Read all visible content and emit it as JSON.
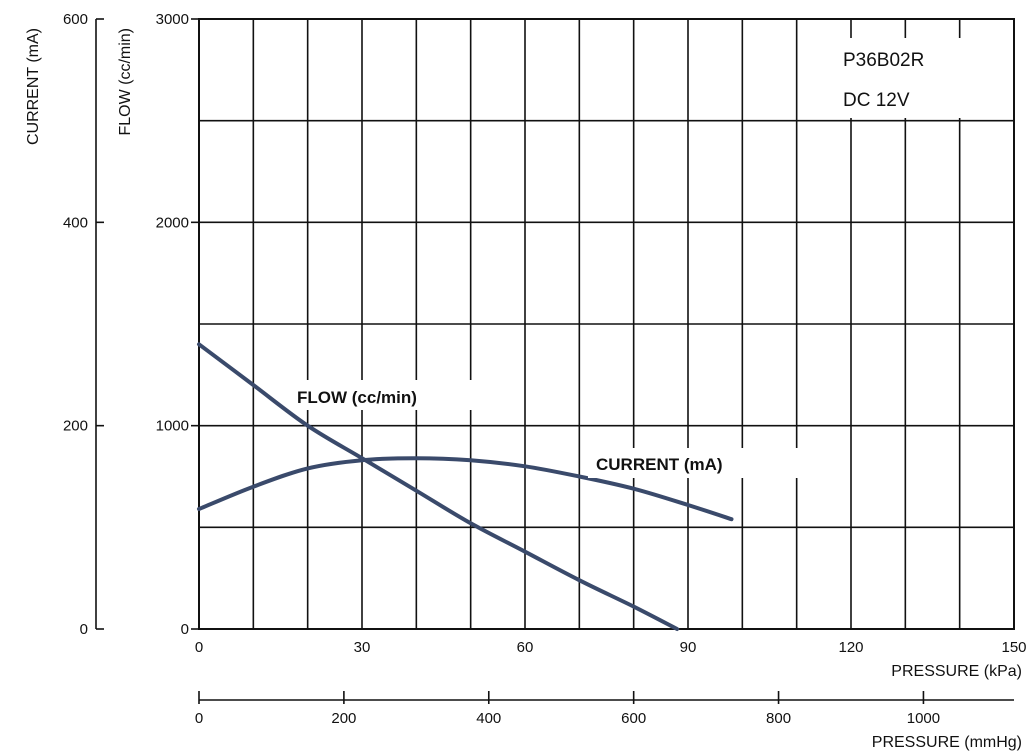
{
  "chart_data": {
    "type": "line",
    "model": "P36B02R",
    "voltage": "DC 12V",
    "x_axis_kpa": {
      "label": "PRESSURE (kPa)",
      "range": [
        0,
        150
      ],
      "ticks": [
        "0",
        "30",
        "60",
        "90",
        "120",
        "150"
      ]
    },
    "x_axis_mmhg": {
      "label": "PRESSURE (mmHg)",
      "range": [
        0,
        1125
      ],
      "ticks": [
        "0",
        "200",
        "400",
        "600",
        "800",
        "1000"
      ]
    },
    "y_axis_flow": {
      "label": "FLOW (cc/min)",
      "range": [
        0,
        3000
      ],
      "ticks": [
        "0",
        "1000",
        "2000",
        "3000"
      ]
    },
    "y_axis_current": {
      "label": "CURRENT (mA)",
      "range": [
        0,
        600
      ],
      "ticks": [
        "0",
        "200",
        "400",
        "600"
      ]
    },
    "series": [
      {
        "name": "FLOW (cc/min)",
        "axis": "flow",
        "color": "#3a4a6b",
        "points": [
          [
            0,
            1400
          ],
          [
            10,
            1200
          ],
          [
            20,
            1000
          ],
          [
            30,
            840
          ],
          [
            40,
            680
          ],
          [
            50,
            520
          ],
          [
            60,
            380
          ],
          [
            70,
            240
          ],
          [
            80,
            110
          ],
          [
            88,
            0
          ]
        ]
      },
      {
        "name": "CURRENT (mA)",
        "axis": "current",
        "color": "#3a4a6b",
        "points": [
          [
            0,
            118
          ],
          [
            10,
            140
          ],
          [
            20,
            158
          ],
          [
            30,
            166
          ],
          [
            40,
            168
          ],
          [
            50,
            166
          ],
          [
            60,
            160
          ],
          [
            70,
            150
          ],
          [
            80,
            138
          ],
          [
            90,
            122
          ],
          [
            98,
            108
          ]
        ]
      }
    ]
  }
}
